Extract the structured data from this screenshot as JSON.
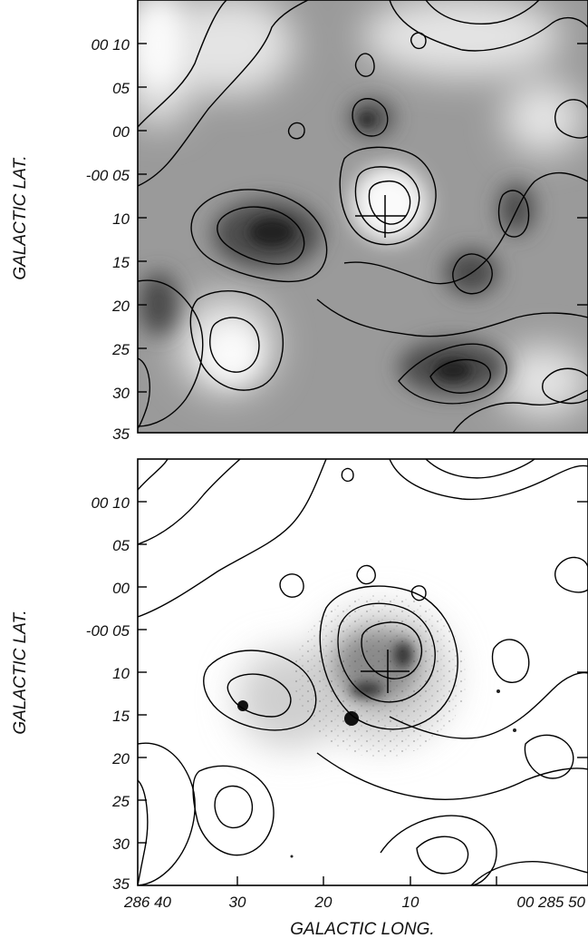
{
  "chart_data": [
    {
      "type": "heatmap",
      "panel": "upper",
      "colormap": "grayscale",
      "ylabel": "GALACTIC LAT.",
      "xlabel": "",
      "y_ticks": [
        "00 10",
        "05",
        "00",
        "-00 05",
        "10",
        "15",
        "20",
        "25",
        "30",
        "35"
      ],
      "y_values_arcmin": [
        10,
        5,
        0,
        -5,
        -10,
        -15,
        -20,
        -25,
        -30,
        -35
      ],
      "xlim_deg": [
        286.68,
        285.81
      ],
      "ylim_arcmin": [
        -35,
        15
      ],
      "features": [
        {
          "name": "bright-central-source",
          "l_deg": 286.2,
          "b_arcmin": -10,
          "shade": "light"
        },
        {
          "name": "dark-clump-west",
          "l_deg": 286.4,
          "b_arcmin": -12,
          "shade": "dark"
        },
        {
          "name": "dark-clump-south",
          "l_deg": 286.1,
          "b_arcmin": -28,
          "shade": "dark"
        }
      ],
      "marker": {
        "type": "cross",
        "l_deg": 286.2,
        "b_arcmin": -10
      }
    },
    {
      "type": "heatmap",
      "panel": "lower",
      "colormap": "grayscale",
      "ylabel": "GALACTIC LAT.",
      "xlabel": "GALACTIC LONG.",
      "x_ticks": [
        "286 40",
        "30",
        "20",
        "10",
        "00 285 50"
      ],
      "x_values_deg": [
        286.6667,
        286.5,
        286.3333,
        286.1667,
        286.0
      ],
      "y_ticks": [
        "00 10",
        "05",
        "00",
        "-00 05",
        "10",
        "15",
        "20",
        "25",
        "30",
        "35"
      ],
      "y_values_arcmin": [
        10,
        5,
        0,
        -5,
        -10,
        -15,
        -20,
        -25,
        -30,
        -35
      ],
      "xlim_deg": [
        286.68,
        285.81
      ],
      "ylim_arcmin": [
        -35,
        15
      ],
      "features": [
        {
          "name": "nebula-core",
          "l_deg": 286.2,
          "b_arcmin": -10,
          "shade": "dark"
        },
        {
          "name": "point-source-1",
          "l_deg": 286.5,
          "b_arcmin": -14,
          "shade": "dark"
        },
        {
          "name": "point-source-2",
          "l_deg": 286.27,
          "b_arcmin": -16,
          "shade": "dark"
        }
      ],
      "marker": {
        "type": "cross",
        "l_deg": 286.2,
        "b_arcmin": -10
      }
    }
  ],
  "colors": {
    "ink": "#000000",
    "background": "#ffffff"
  }
}
